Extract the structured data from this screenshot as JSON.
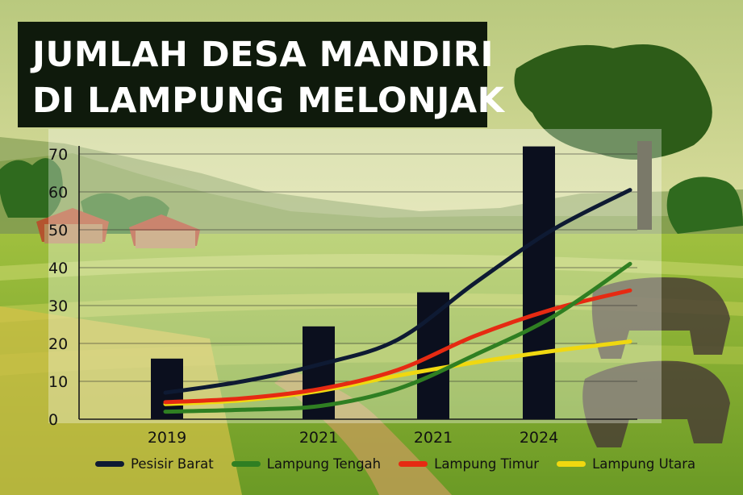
{
  "title": {
    "line1": "JUMLAH DESA MANDIRI",
    "line2": "DI LAMPUNG MELONJAK"
  },
  "colors": {
    "title_bg": "#0f1a0c",
    "bar": "#0b0f1e",
    "pesisir_barat": "#0e1a33",
    "lampung_tengah": "#2f7f22",
    "lampung_timur": "#e62a12",
    "lampung_utara": "#f0d810"
  },
  "chart_data": {
    "type": "bar",
    "categories": [
      "2019",
      "2021",
      "2021",
      "2024"
    ],
    "values": [
      16,
      24.5,
      33.5,
      72
    ],
    "ylim": [
      0,
      70
    ],
    "yticks": [
      0,
      10,
      20,
      30,
      40,
      50,
      60,
      70
    ],
    "ytick_labels": [
      "0",
      "10",
      "20",
      "30",
      "40",
      "50",
      "60",
      "70"
    ],
    "grid": true,
    "legend_position": "bottom",
    "series": [
      {
        "name": "Pesisir Barat",
        "color": "#0e1a33",
        "x": [
          2019,
          2020,
          2021,
          2022,
          2023,
          2024,
          2025
        ],
        "values": [
          7,
          10,
          14.5,
          21,
          36,
          50,
          60.5
        ]
      },
      {
        "name": "Lampung Tengah",
        "color": "#2f7f22",
        "x": [
          2019,
          2020,
          2021,
          2022,
          2023,
          2024,
          2025
        ],
        "values": [
          2,
          2.5,
          3.5,
          8,
          17,
          27,
          41
        ]
      },
      {
        "name": "Lampung Timur",
        "color": "#e62a12",
        "x": [
          2019,
          2020,
          2021,
          2022,
          2023,
          2024,
          2025
        ],
        "values": [
          4.5,
          5.5,
          8,
          13,
          22,
          29,
          34
        ]
      },
      {
        "name": "Lampung Utara",
        "color": "#f0d810",
        "x": [
          2019,
          2020,
          2021,
          2022,
          2023,
          2024,
          2025
        ],
        "values": [
          4,
          5,
          7.5,
          11.5,
          15,
          18,
          20.5
        ]
      }
    ]
  }
}
